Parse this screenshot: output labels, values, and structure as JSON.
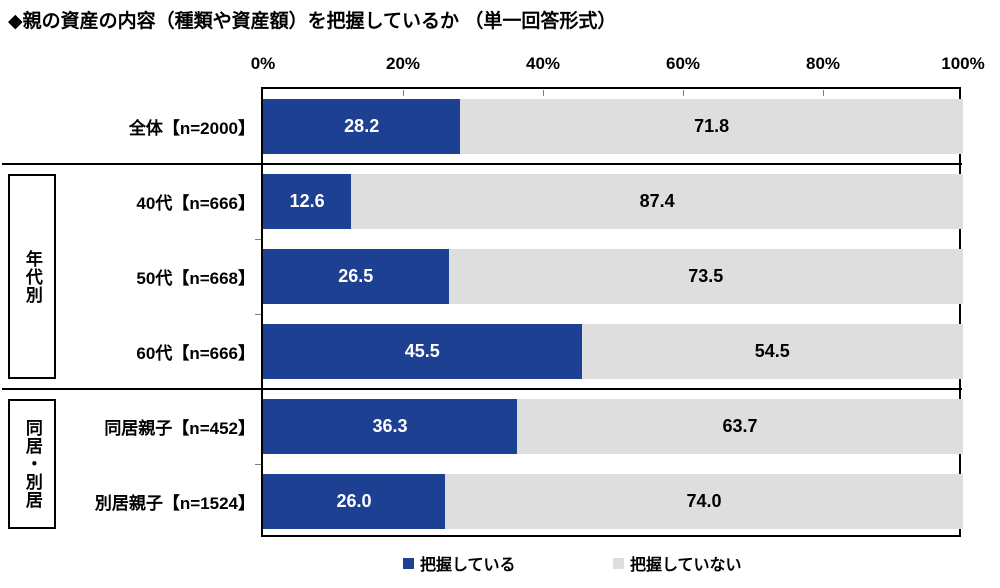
{
  "title": "◆親の資産の内容（種類や資産額）を把握しているか （単一回答形式）",
  "chart_data": {
    "type": "bar",
    "orientation": "horizontal",
    "stacked": true,
    "title": "◆親の資産の内容（種類や資産額）を把握しているか （単一回答形式）",
    "categories": [
      "全体【n=2000】",
      "40代【n=666】",
      "50代【n=668】",
      "60代【n=666】",
      "同居親子【n=452】",
      "別居親子【n=1524】"
    ],
    "series": [
      {
        "name": "把握している",
        "color": "#1e4093",
        "text_color": "#ffffff",
        "values": [
          28.2,
          12.6,
          26.5,
          45.5,
          36.3,
          26.0
        ]
      },
      {
        "name": "把握していない",
        "color": "#dedede",
        "text_color": "#000000",
        "values": [
          71.8,
          87.4,
          73.5,
          54.5,
          63.7,
          74.0
        ]
      }
    ],
    "x_ticks": [
      "0%",
      "20%",
      "40%",
      "60%",
      "80%",
      "100%"
    ],
    "xlim": [
      0,
      100
    ],
    "value_decimals": 1,
    "grid": false,
    "legend_position": "bottom",
    "group_boxes": [
      {
        "label": "年代別",
        "start_row": 1,
        "end_row": 3
      },
      {
        "label": "同居・別居",
        "start_row": 4,
        "end_row": 5
      }
    ],
    "separators_after_rows": [
      0,
      3
    ]
  },
  "legend": {
    "items": [
      {
        "label": "把握している",
        "color": "#1e4093"
      },
      {
        "label": "把握していない",
        "color": "#dedede"
      }
    ]
  }
}
